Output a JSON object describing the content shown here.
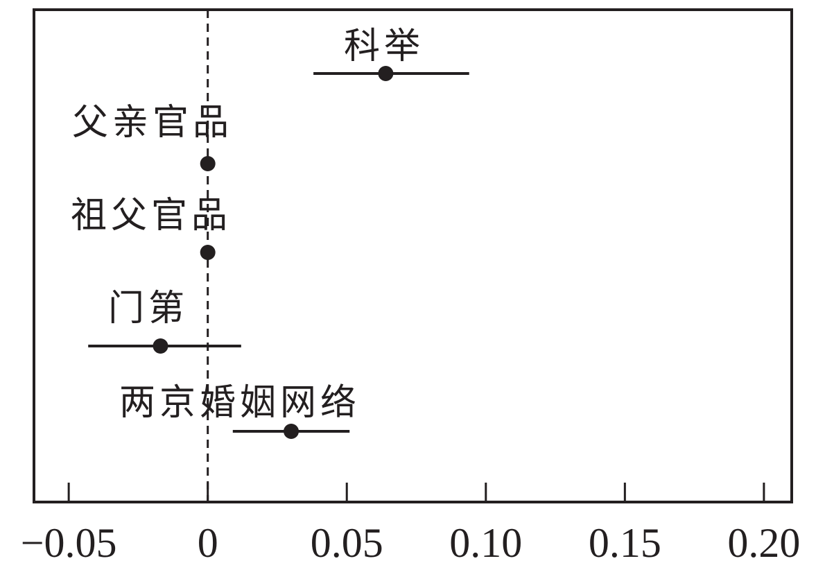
{
  "chart_data": {
    "type": "scatter",
    "subtype": "coefficient-plot-with-confidence-intervals",
    "title": "",
    "xlabel": "",
    "ylabel": "",
    "xlim": [
      -0.0625,
      0.21
    ],
    "x_ticks": [
      -0.05,
      0,
      0.05,
      0.1,
      0.15,
      0.2
    ],
    "x_tick_labels": [
      "−0.05",
      "0",
      "0.05",
      "0.10",
      "0.15",
      "0.20"
    ],
    "reference_line": {
      "x": 0,
      "style": "dashed"
    },
    "grid": false,
    "legend": "none",
    "points": [
      {
        "label": "科举",
        "estimate": 0.064,
        "ci": [
          0.038,
          0.094
        ]
      },
      {
        "label": "父亲官品",
        "estimate": 0.0,
        "ci": null
      },
      {
        "label": "祖父官品",
        "estimate": 0.0,
        "ci": null
      },
      {
        "label": "门第",
        "estimate": -0.017,
        "ci": [
          -0.043,
          0.012
        ]
      },
      {
        "label": "两京婚姻网络",
        "estimate": 0.03,
        "ci": [
          0.009,
          0.051
        ]
      }
    ],
    "colors": {
      "ink": "#231f20"
    }
  }
}
